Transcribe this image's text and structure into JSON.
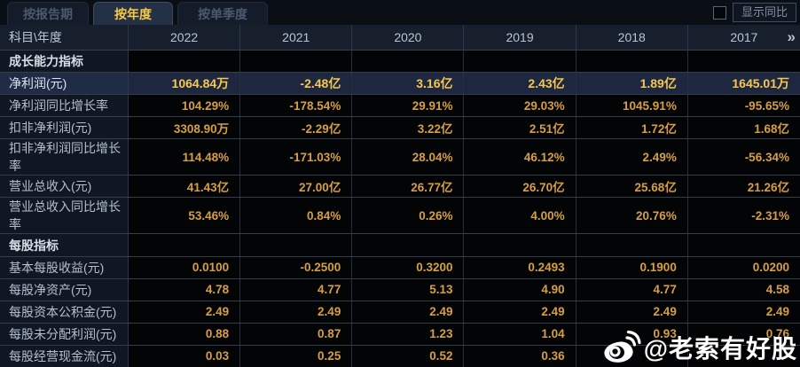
{
  "tabs": [
    {
      "label": "按报告期",
      "active": false
    },
    {
      "label": "按年度",
      "active": true
    },
    {
      "label": "按单季度",
      "active": false
    }
  ],
  "controls": {
    "show_yoy_label": "显示同比",
    "checkbox_checked": false
  },
  "table": {
    "corner_label": "科目\\年度",
    "years": [
      "2022",
      "2021",
      "2020",
      "2019",
      "2018",
      "2017"
    ],
    "more_icon": "»",
    "rows": [
      {
        "type": "section",
        "label": "成长能力指标",
        "values": [
          "",
          "",
          "",
          "",
          "",
          ""
        ]
      },
      {
        "type": "data",
        "highlight": true,
        "label": "净利润(元)",
        "values": [
          "1064.84万",
          "-2.48亿",
          "3.16亿",
          "2.43亿",
          "1.89亿",
          "1645.01万"
        ]
      },
      {
        "type": "data",
        "highlight": false,
        "label": "净利润同比增长率",
        "values": [
          "104.29%",
          "-178.54%",
          "29.91%",
          "29.03%",
          "1045.91%",
          "-95.65%"
        ]
      },
      {
        "type": "data",
        "highlight": false,
        "label": "扣非净利润(元)",
        "values": [
          "3308.90万",
          "-2.29亿",
          "3.22亿",
          "2.51亿",
          "1.72亿",
          "1.68亿"
        ]
      },
      {
        "type": "data",
        "highlight": false,
        "label": "扣非净利润同比增长率",
        "values": [
          "114.48%",
          "-171.03%",
          "28.04%",
          "46.12%",
          "2.49%",
          "-56.34%"
        ]
      },
      {
        "type": "data",
        "highlight": false,
        "label": "营业总收入(元)",
        "values": [
          "41.43亿",
          "27.00亿",
          "26.77亿",
          "26.70亿",
          "25.68亿",
          "21.26亿"
        ]
      },
      {
        "type": "data",
        "highlight": false,
        "label": "营业总收入同比增长率",
        "values": [
          "53.46%",
          "0.84%",
          "0.26%",
          "4.00%",
          "20.76%",
          "-2.31%"
        ]
      },
      {
        "type": "section",
        "label": "每股指标",
        "values": [
          "",
          "",
          "",
          "",
          "",
          ""
        ]
      },
      {
        "type": "data",
        "highlight": false,
        "label": "基本每股收益(元)",
        "values": [
          "0.0100",
          "-0.2500",
          "0.3200",
          "0.2493",
          "0.1900",
          "0.0200"
        ]
      },
      {
        "type": "data",
        "highlight": false,
        "label": "每股净资产(元)",
        "values": [
          "4.78",
          "4.77",
          "5.13",
          "4.90",
          "4.77",
          "4.58"
        ]
      },
      {
        "type": "data",
        "highlight": false,
        "label": "每股资本公积金(元)",
        "values": [
          "2.49",
          "2.49",
          "2.49",
          "2.49",
          "2.49",
          "2.49"
        ]
      },
      {
        "type": "data",
        "highlight": false,
        "label": "每股未分配利润(元)",
        "values": [
          "0.88",
          "0.87",
          "1.23",
          "1.04",
          "0.93",
          "0.76"
        ]
      },
      {
        "type": "data",
        "highlight": false,
        "label": "每股经营现金流(元)",
        "values": [
          "0.03",
          "0.25",
          "0.52",
          "0.36",
          "",
          ""
        ]
      }
    ]
  },
  "watermark": {
    "icon": "weibo-icon",
    "text": "@老索有好股"
  },
  "colors": {
    "accent_gold": "#f8c847",
    "value_gold": "#d79f45",
    "highlight_row_bg": "#1f2b45",
    "header_bg": "#171f2d",
    "label_col_bg": "#101723",
    "tab_active_bg": "#233045",
    "page_bg": "#04060a"
  }
}
